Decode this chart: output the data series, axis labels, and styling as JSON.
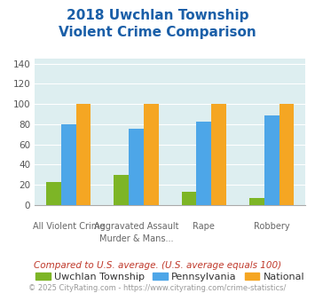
{
  "title": "2018 Uwchlan Township\nViolent Crime Comparison",
  "category_labels_top": [
    "",
    "Aggravated Assault",
    "",
    ""
  ],
  "category_labels_bot": [
    "All Violent Crime",
    "Murder & Mans...",
    "Rape",
    "Robbery"
  ],
  "uwchlan": [
    23,
    30,
    13,
    7
  ],
  "pennsylvania": [
    80,
    76,
    83,
    89
  ],
  "national": [
    100,
    100,
    100,
    100
  ],
  "colors": {
    "uwchlan": "#7db526",
    "pennsylvania": "#4da6e8",
    "national": "#f5a623"
  },
  "ylim": [
    0,
    145
  ],
  "yticks": [
    0,
    20,
    40,
    60,
    80,
    100,
    120,
    140
  ],
  "background_color": "#ddeef0",
  "title_color": "#1a5fa8",
  "legend_labels": [
    "Uwchlan Township",
    "Pennsylvania",
    "National"
  ],
  "footer_text": "Compared to U.S. average. (U.S. average equals 100)",
  "copyright_text": "© 2025 CityRating.com - https://www.cityrating.com/crime-statistics/",
  "footer_color": "#c0392b",
  "copyright_color": "#999999"
}
